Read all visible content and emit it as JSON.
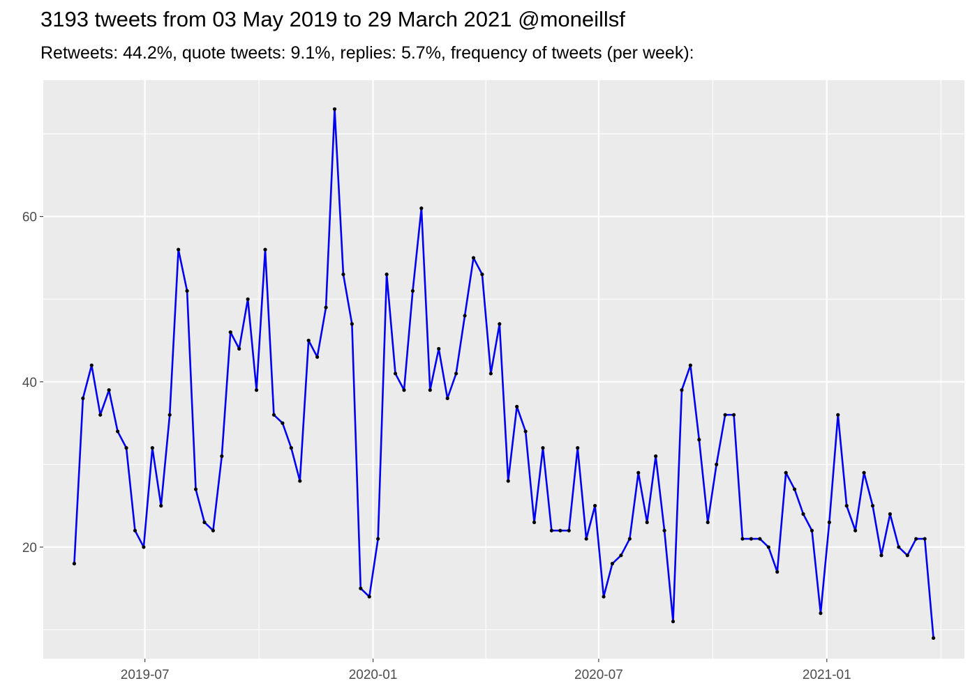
{
  "title": "3193 tweets from 03 May 2019 to 29 March 2021 @moneillsf",
  "subtitle": "Retweets: 44.2%, quote tweets: 9.1%, replies: 5.7%, frequency of tweets (per week):",
  "chart_data": {
    "type": "line",
    "title": "3193 tweets from 03 May 2019 to 29 March 2021 @moneillsf",
    "subtitle": "Retweets: 44.2%, quote tweets: 9.1%, replies: 5.7%, frequency of tweets (per week):",
    "xlabel": "",
    "ylabel": "",
    "x_ticks": [
      "2019-07",
      "2020-01",
      "2020-07",
      "2021-01"
    ],
    "y_ticks": [
      20,
      40,
      60
    ],
    "xlim": [
      "2019-04-10",
      "2021-04-22"
    ],
    "ylim": [
      6.5,
      76.5
    ],
    "grid": true,
    "line_color": "#0000EE",
    "point_color": "#000000",
    "background_color": "#EBEBEB",
    "series": [
      {
        "x": [
          "2019-05-05",
          "2019-05-12",
          "2019-05-19",
          "2019-05-26",
          "2019-06-02",
          "2019-06-09",
          "2019-06-16",
          "2019-06-23",
          "2019-06-30",
          "2019-07-07",
          "2019-07-14",
          "2019-07-21",
          "2019-07-28",
          "2019-08-04",
          "2019-08-11",
          "2019-08-18",
          "2019-08-25",
          "2019-09-01",
          "2019-09-08",
          "2019-09-15",
          "2019-09-22",
          "2019-09-29",
          "2019-10-06",
          "2019-10-13",
          "2019-10-20",
          "2019-10-27",
          "2019-11-03",
          "2019-11-10",
          "2019-11-17",
          "2019-11-24",
          "2019-12-01",
          "2019-12-08",
          "2019-12-15",
          "2019-12-22",
          "2019-12-29",
          "2020-01-05",
          "2020-01-12",
          "2020-01-19",
          "2020-01-26",
          "2020-02-02",
          "2020-02-09",
          "2020-02-16",
          "2020-02-23",
          "2020-03-01",
          "2020-03-08",
          "2020-03-15",
          "2020-03-22",
          "2020-03-29",
          "2020-04-05",
          "2020-04-12",
          "2020-04-19",
          "2020-04-26",
          "2020-05-03",
          "2020-05-10",
          "2020-05-17",
          "2020-05-24",
          "2020-05-31",
          "2020-06-07",
          "2020-06-14",
          "2020-06-21",
          "2020-06-28",
          "2020-07-05",
          "2020-07-12",
          "2020-07-19",
          "2020-07-26",
          "2020-08-02",
          "2020-08-09",
          "2020-08-16",
          "2020-08-23",
          "2020-08-30",
          "2020-09-06",
          "2020-09-13",
          "2020-09-20",
          "2020-09-27",
          "2020-10-04",
          "2020-10-11",
          "2020-10-18",
          "2020-10-25",
          "2020-11-01",
          "2020-11-08",
          "2020-11-15",
          "2020-11-22",
          "2020-11-29",
          "2020-12-06",
          "2020-12-13",
          "2020-12-20",
          "2020-12-27",
          "2021-01-03",
          "2021-01-10",
          "2021-01-17",
          "2021-01-24",
          "2021-01-31",
          "2021-02-07",
          "2021-02-14",
          "2021-02-21",
          "2021-02-28",
          "2021-03-07",
          "2021-03-14",
          "2021-03-21",
          "2021-03-28"
        ],
        "values": [
          18,
          38,
          42,
          36,
          39,
          34,
          32,
          22,
          20,
          32,
          25,
          36,
          56,
          51,
          27,
          23,
          22,
          31,
          46,
          44,
          50,
          39,
          56,
          36,
          35,
          32,
          28,
          45,
          43,
          49,
          73,
          53,
          47,
          15,
          14,
          21,
          53,
          41,
          39,
          51,
          61,
          39,
          44,
          38,
          41,
          48,
          55,
          53,
          41,
          47,
          28,
          37,
          34,
          23,
          32,
          22,
          22,
          22,
          32,
          21,
          25,
          14,
          18,
          19,
          21,
          29,
          23,
          31,
          22,
          11,
          39,
          42,
          33,
          23,
          30,
          36,
          36,
          21,
          21,
          21,
          20,
          17,
          29,
          27,
          24,
          22,
          12,
          23,
          36,
          25,
          22,
          29,
          25,
          19,
          24,
          20,
          19,
          21,
          21,
          9
        ]
      }
    ]
  }
}
